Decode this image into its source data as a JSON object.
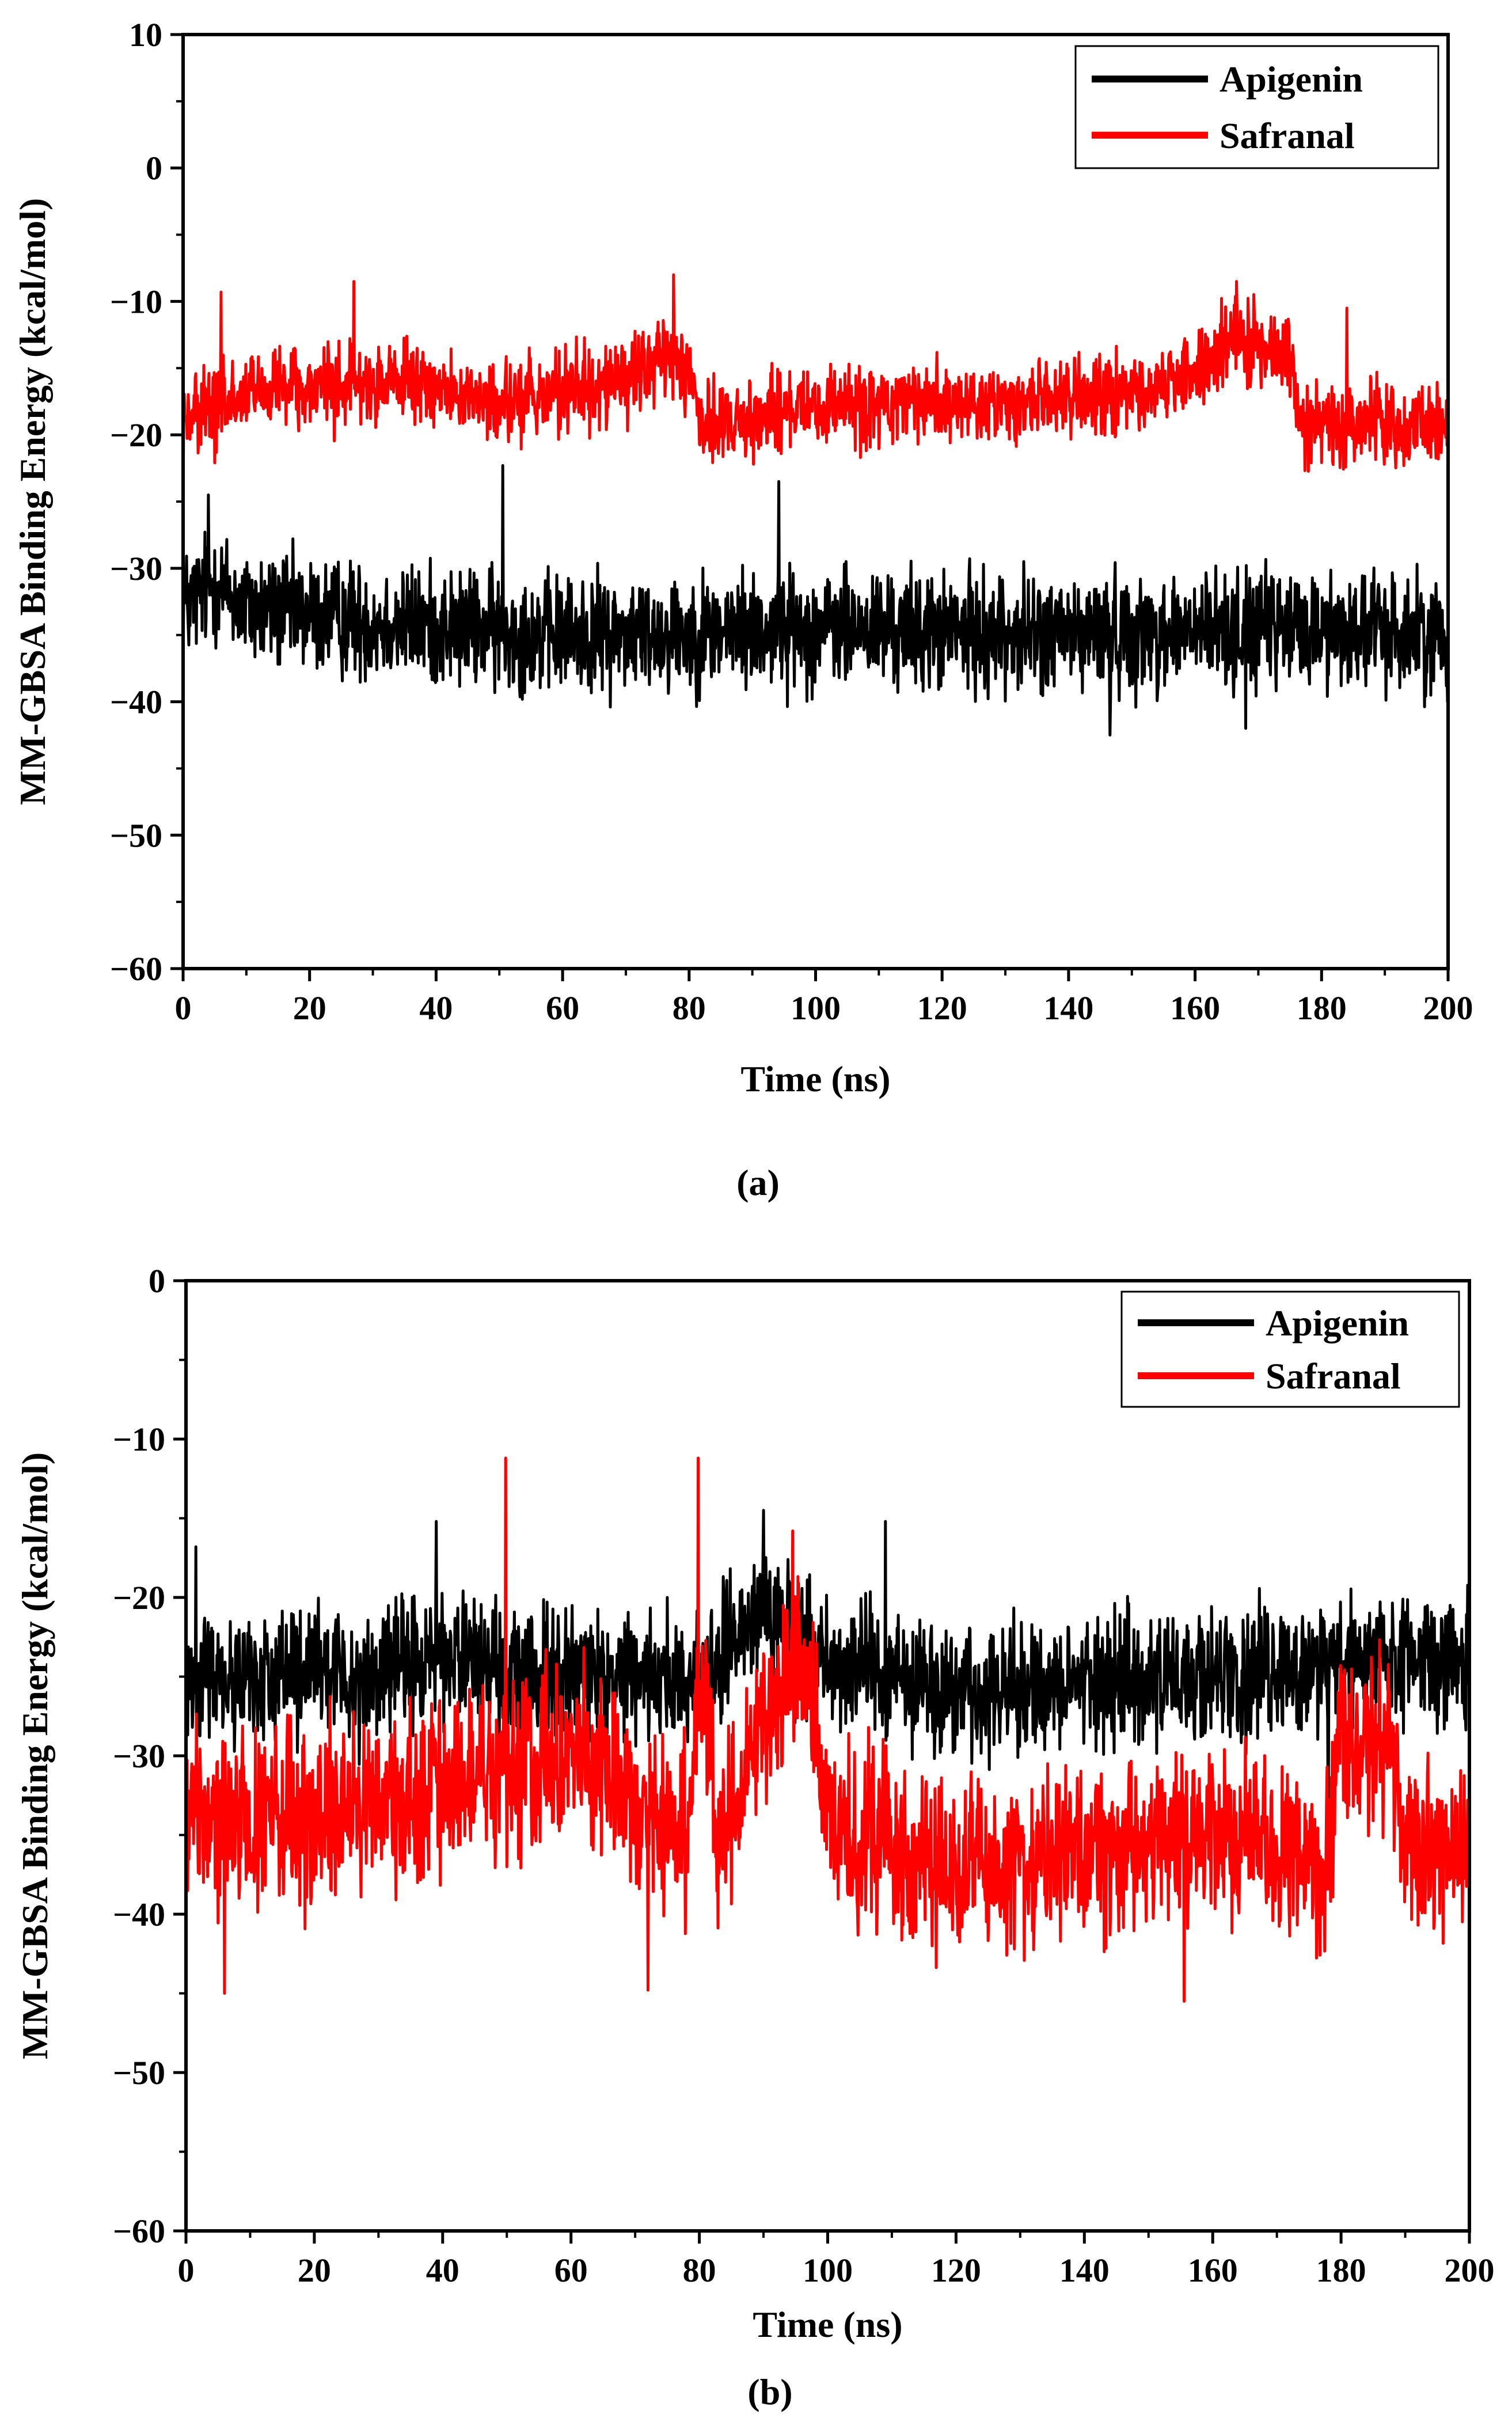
{
  "chart_data": [
    {
      "id": "a",
      "type": "line",
      "panel_label": "(a)",
      "xlabel": "Time (ns)",
      "ylabel": "MM-GBSA Binding Energy (kcal/mol)",
      "xlim": [
        0,
        200
      ],
      "ylim": [
        -60,
        10
      ],
      "xticks": [
        0,
        20,
        40,
        60,
        80,
        100,
        120,
        140,
        160,
        180,
        200
      ],
      "yticks": [
        -60,
        -50,
        -40,
        -30,
        -20,
        -10,
        0,
        10
      ],
      "grid": false,
      "legend_position": "top-right",
      "series": [
        {
          "name": "Apigenin",
          "color": "#000000",
          "mean_profile": [
            [
              0,
              -33
            ],
            [
              5,
              -31
            ],
            [
              10,
              -33
            ],
            [
              30,
              -34
            ],
            [
              60,
              -35
            ],
            [
              100,
              -34.5
            ],
            [
              140,
              -35
            ],
            [
              180,
              -34.5
            ],
            [
              200,
              -35
            ]
          ],
          "noise_range": [
            -6.5,
            6.5
          ],
          "spikes": [
            [
              4,
              -24.5
            ],
            [
              50.5,
              -22.3
            ],
            [
              94.2,
              -23.5
            ],
            [
              146.5,
              -42.5
            ],
            [
              168,
              -42
            ],
            [
              200,
              -40
            ]
          ]
        },
        {
          "name": "Safranal",
          "color": "#ff0000",
          "mean_profile": [
            [
              0,
              -19
            ],
            [
              10,
              -17
            ],
            [
              30,
              -16
            ],
            [
              50,
              -17.5
            ],
            [
              70,
              -16
            ],
            [
              78,
              -14
            ],
            [
              81,
              -17
            ],
            [
              82,
              -19
            ],
            [
              100,
              -18
            ],
            [
              130,
              -17.5
            ],
            [
              150,
              -17
            ],
            [
              158,
              -16
            ],
            [
              165,
              -13
            ],
            [
              175,
              -14
            ],
            [
              177,
              -19.5
            ],
            [
              200,
              -19
            ]
          ],
          "noise_range": [
            -4.5,
            4.5
          ],
          "spikes": [
            [
              0,
              -25.5
            ],
            [
              6,
              -9.3
            ],
            [
              27,
              -8.5
            ],
            [
              77.5,
              -8
            ],
            [
              166.5,
              -8.5
            ],
            [
              184,
              -10.5
            ]
          ]
        }
      ]
    },
    {
      "id": "b",
      "type": "line",
      "panel_label": "(b)",
      "xlabel": "Time (ns)",
      "ylabel": "MM-GBSA Binding Energy (kcal/mol)",
      "xlim": [
        0,
        200
      ],
      "ylim": [
        -60,
        0
      ],
      "xticks": [
        0,
        20,
        40,
        60,
        80,
        100,
        120,
        140,
        160,
        180,
        200
      ],
      "yticks": [
        -60,
        -50,
        -40,
        -30,
        -20,
        -10,
        0
      ],
      "grid": false,
      "legend_position": "top-right",
      "series": [
        {
          "name": "Apigenin",
          "color": "#000000",
          "mean_profile": [
            [
              0,
              -25
            ],
            [
              30,
              -25
            ],
            [
              40,
              -23.5
            ],
            [
              50,
              -25
            ],
            [
              80,
              -25
            ],
            [
              90,
              -21
            ],
            [
              100,
              -24
            ],
            [
              120,
              -26
            ],
            [
              140,
              -25.5
            ],
            [
              160,
              -25
            ],
            [
              180,
              -24
            ],
            [
              200,
              -24
            ]
          ],
          "noise_range": [
            -6,
            6
          ],
          "spikes": [
            [
              1.5,
              -16.8
            ],
            [
              39,
              -15.2
            ],
            [
              90,
              -14.5
            ],
            [
              109,
              -15.2
            ],
            [
              178,
              -35.5
            ]
          ]
        },
        {
          "name": "Safranal",
          "color": "#ff0000",
          "mean_profile": [
            [
              0,
              -34
            ],
            [
              20,
              -34
            ],
            [
              40,
              -32
            ],
            [
              50,
              -31
            ],
            [
              60,
              -30
            ],
            [
              70,
              -33
            ],
            [
              78,
              -35
            ],
            [
              80,
              -24
            ],
            [
              83,
              -36
            ],
            [
              90,
              -27
            ],
            [
              97,
              -24
            ],
            [
              100,
              -34
            ],
            [
              110,
              -36
            ],
            [
              120,
              -37
            ],
            [
              140,
              -36
            ],
            [
              160,
              -35
            ],
            [
              170,
              -36
            ],
            [
              178,
              -37
            ],
            [
              180,
              -28
            ],
            [
              188,
              -29
            ],
            [
              190,
              -36
            ],
            [
              200,
              -36
            ]
          ],
          "noise_range": [
            -8,
            8
          ],
          "spikes": [
            [
              49.8,
              -11.2
            ],
            [
              79.8,
              -11.2
            ],
            [
              94.5,
              -15.8
            ],
            [
              155.5,
              -45.5
            ],
            [
              6,
              -45
            ],
            [
              72,
              -44.8
            ]
          ]
        }
      ]
    }
  ]
}
